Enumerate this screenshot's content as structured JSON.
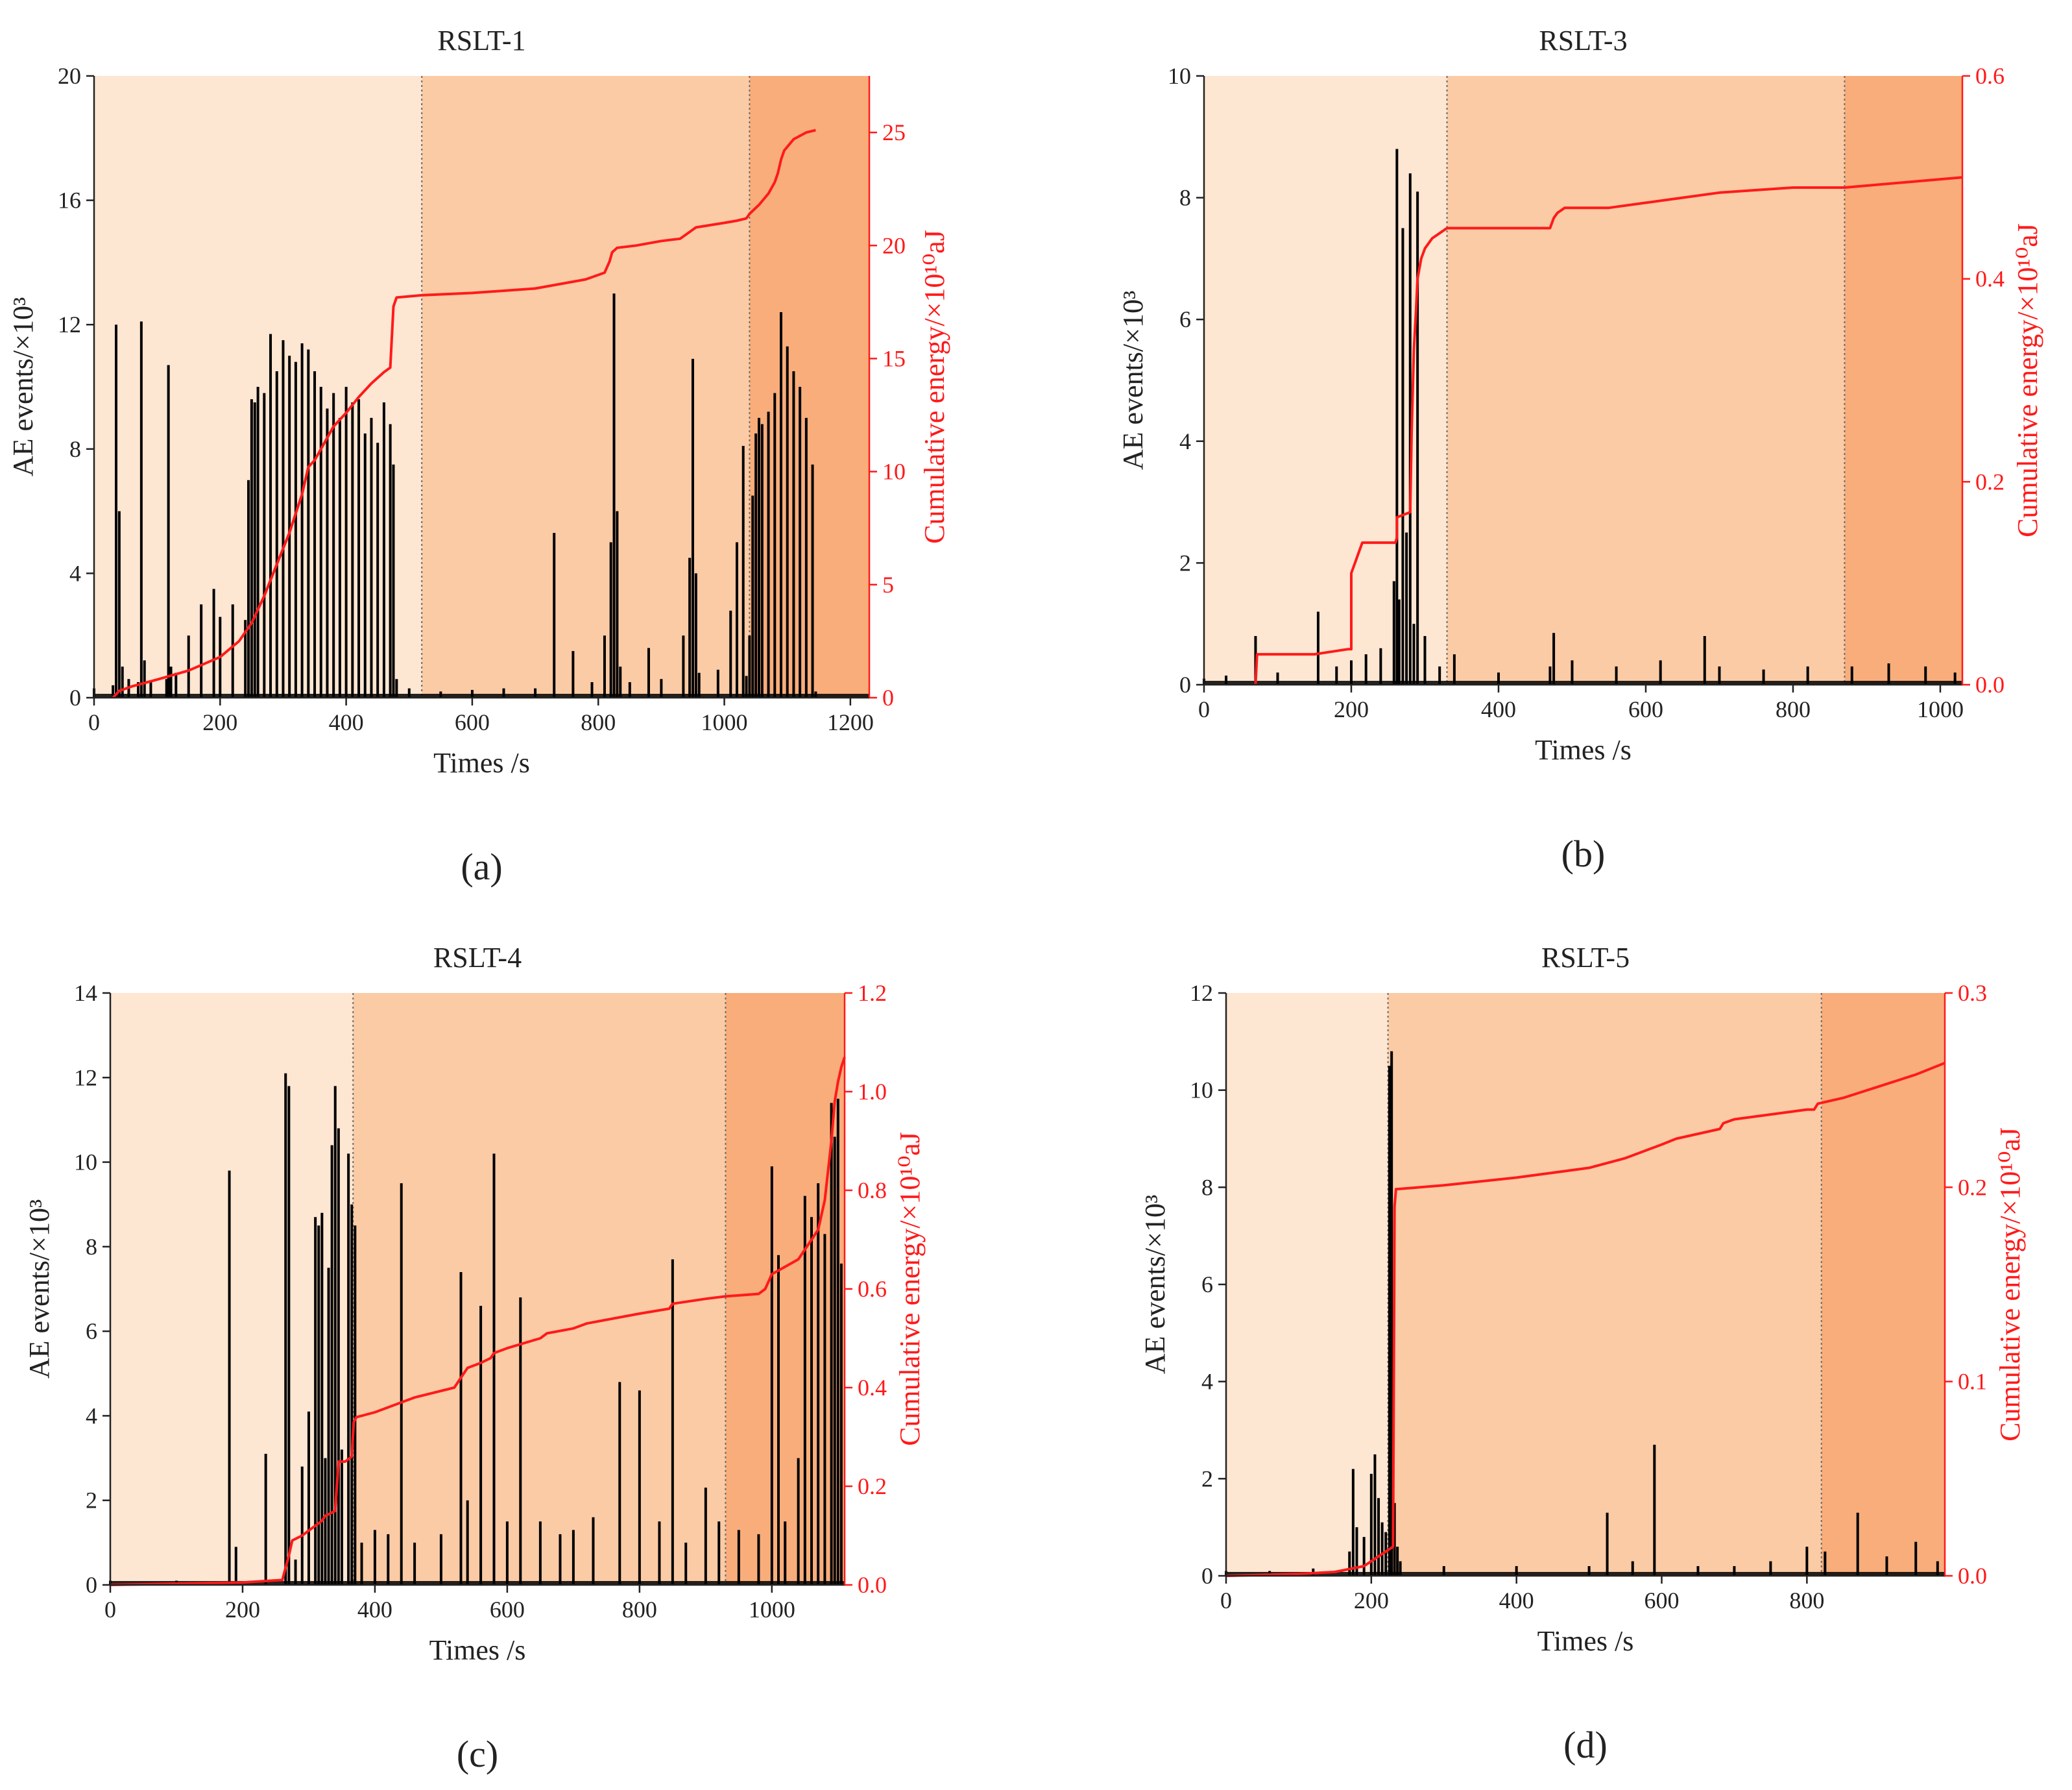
{
  "figure": {
    "colors": {
      "phase1": "#fde6d2",
      "phase2": "#fbcba5",
      "phase3": "#f8ad7b",
      "events": "#000000",
      "energy": "#ff1a1a",
      "axis": "#222222",
      "divider": "#6a6a6a"
    }
  },
  "chart_data": [
    {
      "panel_label": "(a)",
      "title": "RSLT-1",
      "type": "bar",
      "xlabel": "Times /s",
      "ylabel_left": "AE events/×10³",
      "ylabel_right": "Cumulative energy/×10¹⁰aJ",
      "xlim": [
        0,
        1230
      ],
      "xticks": [
        0,
        200,
        400,
        600,
        800,
        1000,
        1200
      ],
      "ylim_left": [
        0,
        20
      ],
      "yticks_left": [
        0,
        4,
        8,
        12,
        16,
        20
      ],
      "ylim_right": [
        0,
        27.5
      ],
      "yticks_right": [
        0,
        5,
        10,
        15,
        20,
        25
      ],
      "phase_boundaries": [
        520,
        1040
      ],
      "series": [
        {
          "name": "AE events",
          "axis": "left",
          "style": "spikes",
          "x": [
            0,
            30,
            35,
            40,
            45,
            55,
            70,
            75,
            80,
            90,
            115,
            118,
            122,
            130,
            150,
            170,
            190,
            200,
            220,
            240,
            245,
            250,
            255,
            260,
            270,
            280,
            290,
            300,
            310,
            320,
            330,
            340,
            350,
            360,
            370,
            380,
            390,
            400,
            410,
            420,
            430,
            440,
            450,
            460,
            470,
            475,
            480,
            500,
            550,
            600,
            650,
            700,
            730,
            760,
            790,
            810,
            820,
            825,
            830,
            835,
            850,
            880,
            900,
            935,
            945,
            950,
            955,
            960,
            990,
            1010,
            1020,
            1030,
            1035,
            1040,
            1045,
            1050,
            1055,
            1060,
            1070,
            1080,
            1090,
            1100,
            1110,
            1120,
            1130,
            1140,
            1145
          ],
          "y": [
            0.3,
            0.4,
            12.0,
            6.0,
            1.0,
            0.6,
            0.5,
            12.1,
            1.2,
            0.5,
            0.6,
            10.7,
            1.0,
            0.8,
            2.0,
            3.0,
            3.5,
            2.6,
            3.0,
            2.5,
            7.0,
            9.6,
            9.5,
            10.0,
            9.8,
            11.7,
            10.5,
            11.5,
            11.0,
            10.8,
            11.4,
            11.2,
            10.5,
            10.0,
            9.3,
            9.8,
            9.0,
            10.0,
            9.5,
            9.6,
            8.5,
            9.0,
            8.2,
            9.5,
            8.8,
            7.5,
            0.6,
            0.3,
            0.2,
            0.25,
            0.3,
            0.3,
            5.3,
            1.5,
            0.5,
            2.0,
            5.0,
            13.0,
            6.0,
            1.0,
            0.5,
            1.6,
            0.6,
            2.0,
            4.5,
            10.9,
            4.0,
            0.8,
            0.9,
            2.8,
            5.0,
            8.1,
            0.7,
            2.0,
            6.5,
            8.5,
            9.0,
            8.8,
            9.2,
            9.8,
            12.4,
            11.3,
            10.5,
            10.0,
            9.0,
            7.5,
            0.2
          ]
        },
        {
          "name": "Cumulative energy",
          "axis": "right",
          "style": "line",
          "x": [
            30,
            40,
            60,
            100,
            150,
            200,
            230,
            250,
            270,
            290,
            310,
            330,
            340,
            350,
            360,
            370,
            380,
            400,
            420,
            440,
            460,
            470,
            475,
            480,
            520,
            600,
            700,
            780,
            810,
            818,
            822,
            830,
            860,
            900,
            930,
            945,
            955,
            1000,
            1020,
            1035,
            1040,
            1055,
            1070,
            1080,
            1085,
            1090,
            1095,
            1110,
            1130,
            1145
          ],
          "y": [
            0,
            0.3,
            0.5,
            0.8,
            1.2,
            1.8,
            2.5,
            3.3,
            4.5,
            5.9,
            7.3,
            9.0,
            10.2,
            10.5,
            11.0,
            11.5,
            12.0,
            12.6,
            13.3,
            13.9,
            14.4,
            14.6,
            17.3,
            17.7,
            17.8,
            17.9,
            18.1,
            18.5,
            18.8,
            19.3,
            19.7,
            19.9,
            20.0,
            20.2,
            20.3,
            20.6,
            20.8,
            21.0,
            21.1,
            21.2,
            21.4,
            21.8,
            22.3,
            22.8,
            23.2,
            23.8,
            24.2,
            24.7,
            25.0,
            25.1
          ]
        }
      ]
    },
    {
      "panel_label": "(b)",
      "title": "RSLT-3",
      "type": "bar",
      "xlabel": "Times /s",
      "ylabel_left": "AE events/×10³",
      "ylabel_right": "Cumulative energy/×10¹⁰aJ",
      "xlim": [
        0,
        1030
      ],
      "xticks": [
        0,
        200,
        400,
        600,
        800,
        1000
      ],
      "ylim_left": [
        0,
        10
      ],
      "yticks_left": [
        0,
        2,
        4,
        6,
        8,
        10
      ],
      "ylim_right": [
        0,
        0.6
      ],
      "yticks_right": [
        0.0,
        0.2,
        0.4,
        0.6
      ],
      "phase_boundaries": [
        330,
        870
      ],
      "series": [
        {
          "name": "AE events",
          "axis": "left",
          "style": "spikes",
          "x": [
            0,
            30,
            70,
            100,
            155,
            180,
            200,
            220,
            240,
            258,
            262,
            265,
            270,
            275,
            280,
            285,
            290,
            300,
            320,
            340,
            400,
            470,
            475,
            500,
            560,
            620,
            680,
            700,
            760,
            820,
            880,
            930,
            980,
            1020
          ],
          "y": [
            0.1,
            0.15,
            0.8,
            0.2,
            1.2,
            0.3,
            0.4,
            0.5,
            0.6,
            1.7,
            8.8,
            1.4,
            7.5,
            2.5,
            8.4,
            1.0,
            8.1,
            0.8,
            0.3,
            0.5,
            0.2,
            0.3,
            0.85,
            0.4,
            0.3,
            0.4,
            0.8,
            0.3,
            0.25,
            0.3,
            0.3,
            0.35,
            0.3,
            0.2
          ]
        },
        {
          "name": "Cumulative energy",
          "axis": "right",
          "style": "line",
          "x": [
            70,
            72,
            150,
            195,
            200,
            200,
            205,
            210,
            215,
            260,
            262,
            262,
            280,
            282,
            285,
            288,
            290,
            295,
            300,
            310,
            320,
            330,
            470,
            475,
            480,
            490,
            550,
            600,
            650,
            700,
            800,
            870,
            950,
            1030
          ],
          "y": [
            0,
            0.03,
            0.03,
            0.035,
            0.035,
            0.11,
            0.12,
            0.13,
            0.14,
            0.14,
            0.145,
            0.165,
            0.17,
            0.25,
            0.33,
            0.37,
            0.4,
            0.42,
            0.43,
            0.44,
            0.445,
            0.45,
            0.45,
            0.46,
            0.465,
            0.47,
            0.47,
            0.475,
            0.48,
            0.485,
            0.49,
            0.49,
            0.495,
            0.5
          ]
        }
      ]
    },
    {
      "panel_label": "(c)",
      "title": "RSLT-4",
      "type": "bar",
      "xlabel": "Times /s",
      "ylabel_left": "AE events/×10³",
      "ylabel_right": "Cumulative energy/×10¹⁰aJ",
      "xlim": [
        0,
        1110
      ],
      "xticks": [
        0,
        200,
        400,
        600,
        800,
        1000
      ],
      "ylim_left": [
        0,
        14
      ],
      "yticks_left": [
        0,
        2,
        4,
        6,
        8,
        10,
        12,
        14
      ],
      "ylim_right": [
        0,
        1.2
      ],
      "yticks_right": [
        0.0,
        0.2,
        0.4,
        0.6,
        0.8,
        1.0,
        1.2
      ],
      "phase_boundaries": [
        367,
        930
      ],
      "series": [
        {
          "name": "AE events",
          "axis": "left",
          "style": "spikes",
          "x": [
            0,
            100,
            180,
            190,
            235,
            265,
            270,
            280,
            290,
            300,
            310,
            315,
            320,
            325,
            330,
            335,
            340,
            345,
            350,
            360,
            365,
            370,
            380,
            400,
            420,
            440,
            460,
            500,
            530,
            540,
            560,
            580,
            600,
            620,
            650,
            680,
            700,
            730,
            770,
            800,
            830,
            850,
            870,
            900,
            920,
            950,
            980,
            1000,
            1010,
            1020,
            1040,
            1050,
            1060,
            1070,
            1080,
            1090,
            1095,
            1100,
            1105
          ],
          "y": [
            0.1,
            0.1,
            9.8,
            0.9,
            3.1,
            12.1,
            11.8,
            0.6,
            2.8,
            4.1,
            8.7,
            8.5,
            8.8,
            3.0,
            7.5,
            10.4,
            11.8,
            10.8,
            3.2,
            10.2,
            9.0,
            8.5,
            1.0,
            1.3,
            1.2,
            9.5,
            1.0,
            1.2,
            7.4,
            2.0,
            6.6,
            10.2,
            1.5,
            6.8,
            1.5,
            1.2,
            1.3,
            1.6,
            4.8,
            4.6,
            1.5,
            7.7,
            1.0,
            2.3,
            1.5,
            1.3,
            1.2,
            9.9,
            7.8,
            1.5,
            3.0,
            9.2,
            8.7,
            9.5,
            8.3,
            11.4,
            10.6,
            11.5,
            7.6
          ]
        },
        {
          "name": "Cumulative energy",
          "axis": "right",
          "style": "line",
          "x": [
            0,
            200,
            260,
            270,
            275,
            290,
            300,
            310,
            320,
            325,
            340,
            345,
            355,
            365,
            368,
            372,
            400,
            440,
            460,
            520,
            530,
            540,
            560,
            575,
            580,
            600,
            650,
            660,
            700,
            720,
            800,
            845,
            850,
            900,
            930,
            980,
            990,
            1000,
            1040,
            1050,
            1070,
            1080,
            1085,
            1090,
            1095,
            1100,
            1105,
            1110
          ],
          "y": [
            0,
            0.005,
            0.01,
            0.06,
            0.09,
            0.1,
            0.11,
            0.12,
            0.13,
            0.14,
            0.15,
            0.25,
            0.25,
            0.26,
            0.33,
            0.34,
            0.35,
            0.37,
            0.38,
            0.4,
            0.42,
            0.44,
            0.45,
            0.46,
            0.47,
            0.48,
            0.5,
            0.51,
            0.52,
            0.53,
            0.55,
            0.56,
            0.57,
            0.58,
            0.585,
            0.59,
            0.6,
            0.63,
            0.66,
            0.68,
            0.72,
            0.78,
            0.84,
            0.9,
            0.98,
            1.02,
            1.05,
            1.07
          ]
        }
      ]
    },
    {
      "panel_label": "(d)",
      "title": "RSLT-5",
      "type": "bar",
      "xlabel": "Times /s",
      "ylabel_left": "AE events/×10³",
      "ylabel_right": "Cumulative energy/×10¹⁰aJ",
      "xlim": [
        0,
        990
      ],
      "xticks": [
        0,
        200,
        400,
        600,
        800
      ],
      "ylim_left": [
        0,
        12
      ],
      "yticks_left": [
        0,
        2,
        4,
        6,
        8,
        10,
        12
      ],
      "ylim_right": [
        0,
        0.3
      ],
      "yticks_right": [
        0.0,
        0.1,
        0.2,
        0.3
      ],
      "phase_boundaries": [
        223,
        820
      ],
      "series": [
        {
          "name": "AE events",
          "axis": "left",
          "style": "spikes",
          "x": [
            0,
            60,
            120,
            170,
            175,
            180,
            190,
            200,
            205,
            210,
            215,
            220,
            225,
            228,
            232,
            236,
            240,
            300,
            400,
            500,
            525,
            560,
            590,
            650,
            700,
            750,
            800,
            825,
            870,
            910,
            950,
            980
          ],
          "y": [
            0.1,
            0.1,
            0.15,
            0.5,
            2.2,
            1.0,
            0.8,
            2.1,
            2.5,
            1.6,
            1.1,
            0.9,
            10.5,
            10.8,
            1.5,
            0.6,
            0.3,
            0.2,
            0.2,
            0.2,
            1.3,
            0.3,
            2.7,
            0.2,
            0.2,
            0.3,
            0.6,
            0.5,
            1.3,
            0.4,
            0.7,
            0.3
          ]
        },
        {
          "name": "Cumulative energy",
          "axis": "right",
          "style": "line",
          "x": [
            0,
            100,
            150,
            190,
            210,
            230,
            232,
            234,
            300,
            400,
            500,
            520,
            550,
            600,
            620,
            680,
            685,
            700,
            800,
            810,
            815,
            850,
            900,
            950,
            990
          ],
          "y": [
            0,
            0.001,
            0.002,
            0.005,
            0.01,
            0.015,
            0.19,
            0.199,
            0.201,
            0.205,
            0.21,
            0.212,
            0.215,
            0.222,
            0.225,
            0.23,
            0.233,
            0.235,
            0.24,
            0.24,
            0.243,
            0.246,
            0.252,
            0.258,
            0.264
          ]
        }
      ]
    }
  ]
}
